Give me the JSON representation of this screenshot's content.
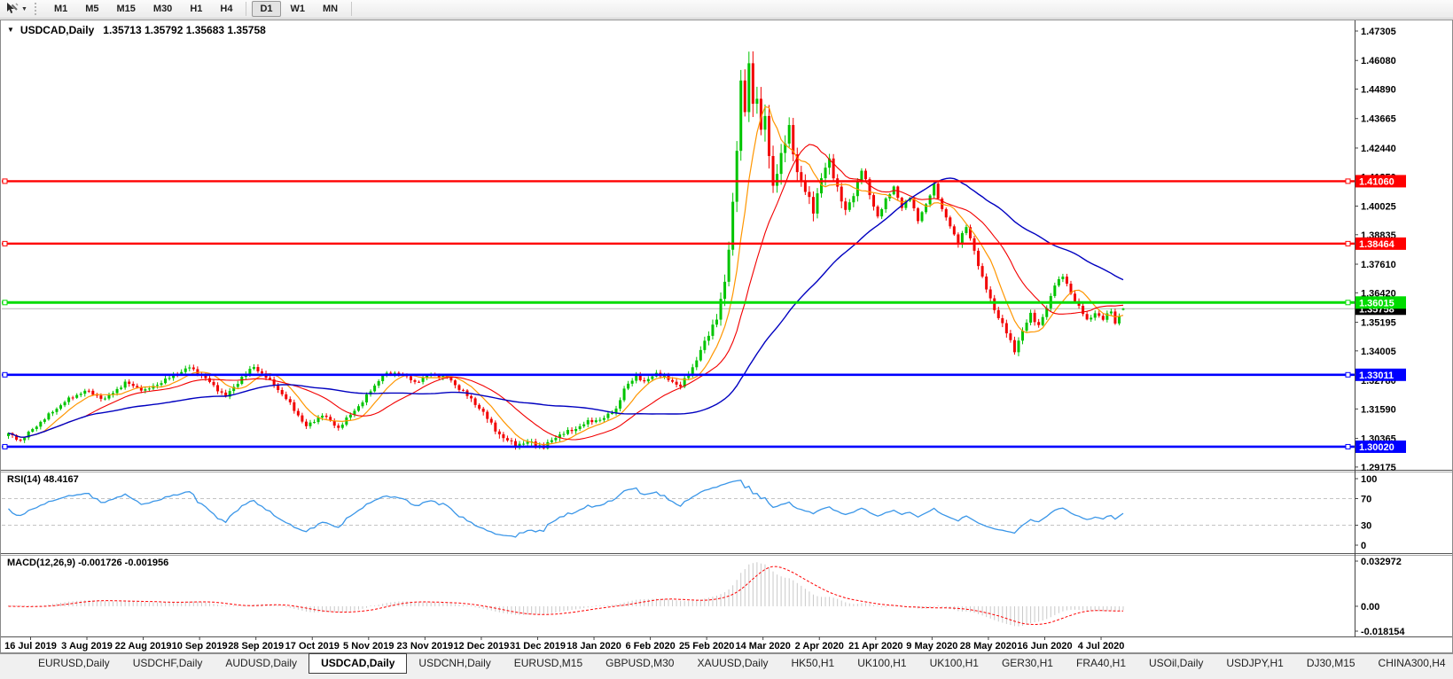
{
  "icons": {
    "dropdown_caret": "▼",
    "title_marker": "▼",
    "tab_scroll_left": "◄",
    "tab_scroll_right": "►"
  },
  "toolbar": {
    "timeframes": [
      "M1",
      "M5",
      "M15",
      "M30",
      "H1",
      "H4",
      "D1",
      "W1",
      "MN"
    ],
    "active_timeframe": "D1",
    "group_breaks": [
      6
    ],
    "trailing_separator": true
  },
  "chart": {
    "title": "USDCAD,Daily",
    "ohlc_display": "1.35713 1.35792 1.35683 1.35758"
  },
  "rsi_panel": {
    "label": "RSI(14) 48.4167"
  },
  "macd_panel": {
    "label": "MACD(12,26,9) -0.001726 -0.001956"
  },
  "tabs": {
    "items": [
      "EURUSD,Daily",
      "USDCHF,Daily",
      "AUDUSD,Daily",
      "USDCAD,Daily",
      "USDCNH,Daily",
      "EURUSD,M15",
      "GBPUSD,M30",
      "XAUUSD,Daily",
      "HK50,H1",
      "UK100,H1",
      "UK100,H1",
      "GER30,H1",
      "FRA40,H1",
      "USOil,Daily",
      "USDJPY,H1",
      "DJ30,M15",
      "CHINA300,H4"
    ],
    "active_index": 3
  },
  "chart_data": {
    "type": "candlestick",
    "symbol": "USDCAD",
    "timeframe": "Daily",
    "interpolation": "linear keyframes [candle_index, close]",
    "candle_count": 278,
    "price_range": {
      "top": 1.4771,
      "bottom": 1.2906
    },
    "keyframes": [
      [
        0,
        1.3055
      ],
      [
        3,
        1.3028
      ],
      [
        8,
        1.3105
      ],
      [
        14,
        1.319
      ],
      [
        19,
        1.3235
      ],
      [
        24,
        1.32
      ],
      [
        29,
        1.3268
      ],
      [
        34,
        1.3235
      ],
      [
        39,
        1.328
      ],
      [
        45,
        1.3332
      ],
      [
        49,
        1.3285
      ],
      [
        54,
        1.321
      ],
      [
        58,
        1.329
      ],
      [
        61,
        1.3335
      ],
      [
        66,
        1.326
      ],
      [
        70,
        1.318
      ],
      [
        74,
        1.3085
      ],
      [
        78,
        1.3135
      ],
      [
        82,
        1.308
      ],
      [
        88,
        1.319
      ],
      [
        93,
        1.33
      ],
      [
        97,
        1.331
      ],
      [
        101,
        1.327
      ],
      [
        105,
        1.3305
      ],
      [
        109,
        1.329
      ],
      [
        113,
        1.323
      ],
      [
        117,
        1.3165
      ],
      [
        120,
        1.3095
      ],
      [
        123,
        1.3035
      ],
      [
        126,
        1.301
      ],
      [
        130,
        1.302
      ],
      [
        133,
        1.2998
      ],
      [
        136,
        1.3045
      ],
      [
        140,
        1.307
      ],
      [
        144,
        1.3105
      ],
      [
        148,
        1.312
      ],
      [
        151,
        1.316
      ],
      [
        153,
        1.324
      ],
      [
        156,
        1.33
      ],
      [
        158,
        1.3268
      ],
      [
        161,
        1.331
      ],
      [
        164,
        1.328
      ],
      [
        167,
        1.3255
      ],
      [
        170,
        1.333
      ],
      [
        172,
        1.3405
      ],
      [
        174,
        1.3465
      ],
      [
        176,
        1.3545
      ],
      [
        178,
        1.368
      ],
      [
        179,
        1.382
      ],
      [
        180,
        1.4015
      ],
      [
        181,
        1.426
      ],
      [
        182,
        1.451
      ],
      [
        183,
        1.439
      ],
      [
        184,
        1.4585
      ],
      [
        185,
        1.443
      ],
      [
        186,
        1.448
      ],
      [
        187,
        1.43
      ],
      [
        188,
        1.438
      ],
      [
        189,
        1.419
      ],
      [
        190,
        1.41
      ],
      [
        192,
        1.421
      ],
      [
        194,
        1.432
      ],
      [
        196,
        1.415
      ],
      [
        198,
        1.406
      ],
      [
        200,
        1.399
      ],
      [
        202,
        1.412
      ],
      [
        204,
        1.419
      ],
      [
        206,
        1.408
      ],
      [
        208,
        1.3975
      ],
      [
        210,
        1.4055
      ],
      [
        212,
        1.4155
      ],
      [
        214,
        1.405
      ],
      [
        216,
        1.396
      ],
      [
        218,
        1.4025
      ],
      [
        220,
        1.4085
      ],
      [
        222,
        1.3995
      ],
      [
        224,
        1.404
      ],
      [
        226,
        1.3945
      ],
      [
        228,
        1.4005
      ],
      [
        230,
        1.4095
      ],
      [
        232,
        1.3985
      ],
      [
        234,
        1.392
      ],
      [
        236,
        1.385
      ],
      [
        238,
        1.3915
      ],
      [
        240,
        1.382
      ],
      [
        242,
        1.37
      ],
      [
        244,
        1.3615
      ],
      [
        246,
        1.354
      ],
      [
        248,
        1.3475
      ],
      [
        250,
        1.3405
      ],
      [
        252,
        1.348
      ],
      [
        254,
        1.3555
      ],
      [
        256,
        1.3505
      ],
      [
        258,
        1.3575
      ],
      [
        260,
        1.368
      ],
      [
        262,
        1.371
      ],
      [
        264,
        1.364
      ],
      [
        266,
        1.3585
      ],
      [
        268,
        1.3525
      ],
      [
        270,
        1.356
      ],
      [
        272,
        1.353
      ],
      [
        274,
        1.357
      ],
      [
        275,
        1.3515
      ],
      [
        276,
        1.3545
      ],
      [
        277,
        1.35758
      ]
    ],
    "last_candle": {
      "o": 1.35713,
      "h": 1.35792,
      "l": 1.35683,
      "c": 1.35758
    },
    "candle_colors": {
      "up": "#00C400",
      "down": "#F20000"
    },
    "hlines": [
      {
        "price": 1.4106,
        "label": "1.41060",
        "color": "#FF0000",
        "width": 2.4
      },
      {
        "price": 1.38464,
        "label": "1.38464",
        "color": "#FF0000",
        "width": 2.4
      },
      {
        "price": 1.36015,
        "label": "1.36015",
        "color": "#00DC00",
        "width": 3
      },
      {
        "price": 1.33011,
        "label": "1.33011",
        "color": "#0000FF",
        "width": 2.6
      },
      {
        "price": 1.3002,
        "label": "1.30020",
        "color": "#0000FF",
        "width": 2.6
      }
    ],
    "current_price": {
      "value": 1.35758,
      "label": "1.35758",
      "line_color": "#B4B4B4",
      "tag_bg": "#000000"
    },
    "price_axis_ticks": [
      "1.47305",
      "1.46080",
      "1.44890",
      "1.43665",
      "1.42440",
      "1.41250",
      "1.40025",
      "1.38835",
      "1.37610",
      "1.36420",
      "1.35195",
      "1.34005",
      "1.32780",
      "1.31590",
      "1.30365",
      "1.29175"
    ],
    "x_labels": [
      "16 Jul 2019",
      "3 Aug 2019",
      "22 Aug 2019",
      "10 Sep 2019",
      "28 Sep 2019",
      "17 Oct 2019",
      "5 Nov 2019",
      "23 Nov 2019",
      "12 Dec 2019",
      "31 Dec 2019",
      "18 Jan 2020",
      "6 Feb 2020",
      "25 Feb 2020",
      "14 Mar 2020",
      "2 Apr 2020",
      "21 Apr 2020",
      "9 May 2020",
      "28 May 2020",
      "16 Jun 2020",
      "4 Jul 2020"
    ],
    "indicators": {
      "ma_fast": {
        "period": 8,
        "color": "#FF9600"
      },
      "ma_mid": {
        "period": 20,
        "color": "#F20000"
      },
      "ma_slow": {
        "period": 55,
        "color": "#0000C0"
      },
      "rsi": {
        "period": 14,
        "value": "48.4167",
        "color": "#3A96E8",
        "levels": [
          100,
          70,
          30,
          0
        ]
      },
      "macd": {
        "params": "12,26,9",
        "main": "-0.001726",
        "signal": "-0.001956",
        "axis_labels": [
          "0.032972",
          "0.00",
          "-0.018154"
        ],
        "hist_color": "#C9C9C9",
        "signal_color": "#FF0000"
      }
    }
  }
}
